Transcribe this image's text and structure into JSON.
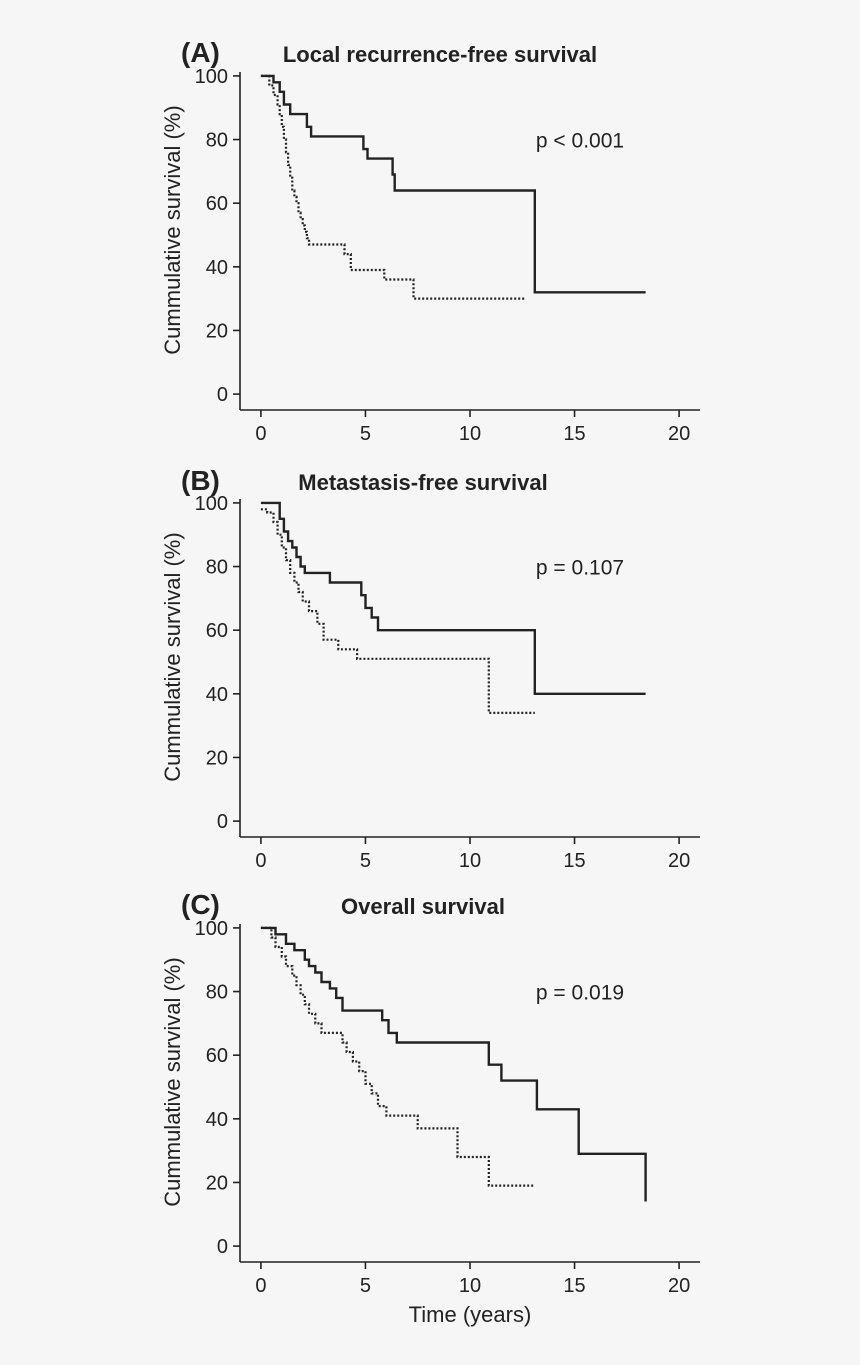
{
  "chart_data": [
    {
      "type": "line",
      "step": true,
      "panel_label": "(A)",
      "title": "Local recurrence-free survival",
      "ylabel": "Cummulative survival (%)",
      "xlabel": "",
      "xlim": [
        -1,
        21
      ],
      "ylim": [
        -5,
        105
      ],
      "xticks": [
        0,
        5,
        10,
        15,
        20
      ],
      "yticks": [
        0,
        20,
        40,
        60,
        80,
        100
      ],
      "annotation": "p < 0.001",
      "series": [
        {
          "name": "solid",
          "style": "solid",
          "x": [
            0,
            0.6,
            0.9,
            1.1,
            1.4,
            2.2,
            2.4,
            4.9,
            5.1,
            6.3,
            6.4,
            13.1,
            18.4
          ],
          "y": [
            100,
            98,
            95,
            91,
            88,
            84,
            81,
            77,
            74,
            69,
            64,
            32,
            32
          ]
        },
        {
          "name": "dotted",
          "style": "dotted",
          "x": [
            0,
            0.4,
            0.6,
            0.8,
            0.9,
            1.0,
            1.1,
            1.2,
            1.3,
            1.4,
            1.5,
            1.6,
            1.7,
            1.8,
            1.9,
            2.0,
            2.1,
            2.2,
            2.3,
            2.5,
            4.0,
            4.3,
            5.9,
            7.3,
            12.6
          ],
          "y": [
            100,
            97,
            94,
            91,
            88,
            84,
            80,
            76,
            72,
            68,
            64,
            62,
            60,
            57,
            55,
            53,
            51,
            49,
            47,
            47,
            44,
            39,
            36,
            30,
            30
          ]
        }
      ]
    },
    {
      "type": "line",
      "step": true,
      "panel_label": "(B)",
      "title": "Metastasis-free survival",
      "ylabel": "Cummulative survival (%)",
      "xlabel": "",
      "xlim": [
        -1,
        21
      ],
      "ylim": [
        -5,
        105
      ],
      "xticks": [
        0,
        5,
        10,
        15,
        20
      ],
      "yticks": [
        0,
        20,
        40,
        60,
        80,
        100
      ],
      "annotation": "p = 0.107",
      "series": [
        {
          "name": "solid",
          "style": "solid",
          "x": [
            0,
            0.9,
            1.1,
            1.3,
            1.5,
            1.7,
            1.9,
            2.1,
            2.5,
            3.3,
            4.8,
            5.0,
            5.3,
            5.6,
            13.1,
            18.4
          ],
          "y": [
            100,
            95,
            91,
            88,
            86,
            83,
            80,
            78,
            78,
            75,
            71,
            67,
            64,
            60,
            40,
            40
          ]
        },
        {
          "name": "dotted",
          "style": "dotted",
          "x": [
            0,
            0.3,
            0.6,
            0.8,
            1.0,
            1.2,
            1.4,
            1.6,
            1.8,
            2.0,
            2.3,
            2.7,
            3.0,
            3.7,
            4.6,
            10.9,
            13.1
          ],
          "y": [
            98,
            97,
            94,
            90,
            86,
            82,
            78,
            75,
            72,
            69,
            66,
            62,
            57,
            54,
            51,
            34,
            34
          ]
        }
      ]
    },
    {
      "type": "line",
      "step": true,
      "panel_label": "(C)",
      "title": "Overall survival",
      "ylabel": "Cummulative survival (%)",
      "xlabel": "Time (years)",
      "xlim": [
        -1,
        21
      ],
      "ylim": [
        -5,
        105
      ],
      "xticks": [
        0,
        5,
        10,
        15,
        20
      ],
      "yticks": [
        0,
        20,
        40,
        60,
        80,
        100
      ],
      "annotation": "p = 0.019",
      "series": [
        {
          "name": "solid",
          "style": "solid",
          "x": [
            0,
            0.7,
            1.2,
            1.6,
            2.1,
            2.3,
            2.6,
            2.9,
            3.3,
            3.6,
            3.9,
            5.8,
            6.1,
            6.5,
            10.9,
            11.5,
            13.2,
            15.2,
            18.4
          ],
          "y": [
            100,
            98,
            95,
            93,
            90,
            88,
            86,
            83,
            81,
            78,
            74,
            71,
            67,
            64,
            57,
            52,
            43,
            29,
            14
          ]
        },
        {
          "name": "dotted",
          "style": "dotted",
          "x": [
            0,
            0.5,
            0.7,
            1.0,
            1.2,
            1.5,
            1.7,
            1.9,
            2.1,
            2.3,
            2.6,
            2.9,
            3.9,
            4.1,
            4.4,
            4.7,
            5.0,
            5.3,
            5.6,
            6.0,
            7.5,
            9.4,
            10.9,
            13.1
          ],
          "y": [
            100,
            97,
            94,
            91,
            88,
            85,
            82,
            79,
            76,
            73,
            70,
            67,
            64,
            61,
            58,
            55,
            51,
            48,
            44,
            41,
            37,
            28,
            19,
            19
          ]
        }
      ]
    }
  ]
}
